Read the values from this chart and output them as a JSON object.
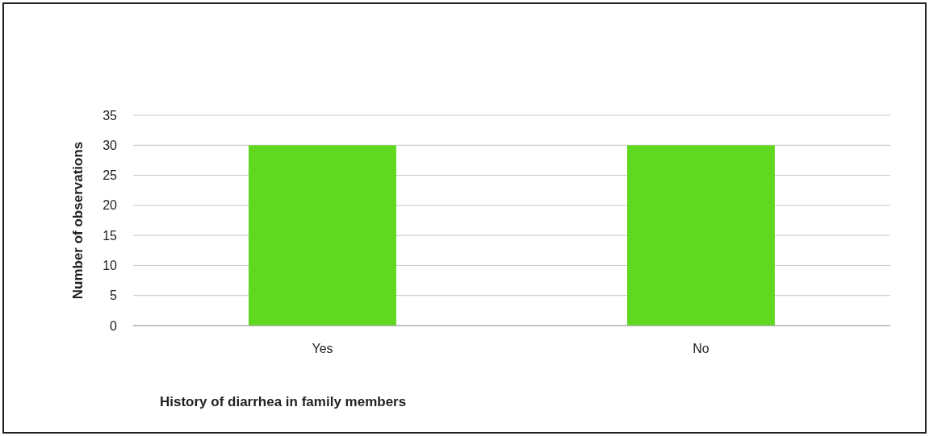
{
  "chart_data": {
    "type": "bar",
    "xlabel": "History of diarrhea in family members",
    "ylabel": "Number of observations",
    "categories": [
      "Yes",
      "No"
    ],
    "values": [
      30,
      30
    ],
    "color": "#5fd81f",
    "ylim": [
      0,
      35
    ],
    "yticks": [
      0,
      5,
      10,
      15,
      20,
      25,
      30,
      35
    ],
    "grid": "y"
  }
}
